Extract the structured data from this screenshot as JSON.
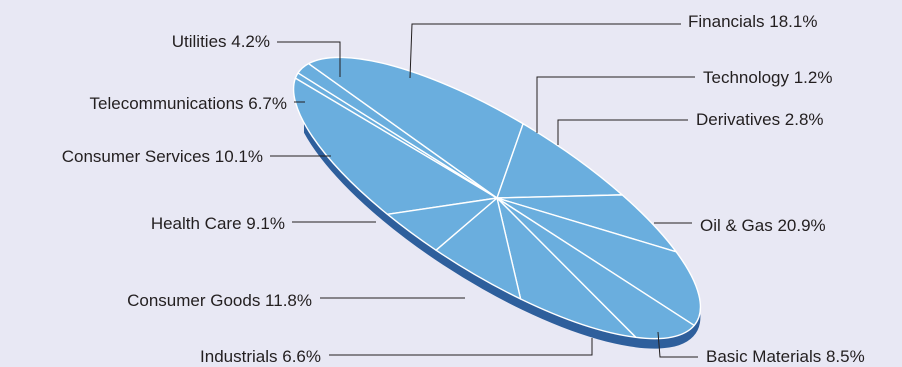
{
  "chart_data": {
    "type": "pie",
    "style": "3d-tilted",
    "title": "",
    "legend": "none",
    "label_placement": "outside-with-leader-lines",
    "slices": [
      {
        "name": "Financials",
        "value": 18.1,
        "label": "Financials 18.1%"
      },
      {
        "name": "Technology",
        "value": 1.2,
        "label": "Technology 1.2%"
      },
      {
        "name": "Derivatives",
        "value": 2.8,
        "label": "Derivatives 2.8%"
      },
      {
        "name": "Oil & Gas",
        "value": 20.9,
        "label": "Oil & Gas 20.9%"
      },
      {
        "name": "Basic Materials",
        "value": 8.5,
        "label": "Basic Materials 8.5%"
      },
      {
        "name": "Industrials",
        "value": 6.6,
        "label": "Industrials 6.6%"
      },
      {
        "name": "Consumer Goods",
        "value": 11.8,
        "label": "Consumer Goods 11.8%"
      },
      {
        "name": "Health Care",
        "value": 9.1,
        "label": "Health Care 9.1%"
      },
      {
        "name": "Consumer Services",
        "value": 10.1,
        "label": "Consumer Services 10.1%"
      },
      {
        "name": "Telecommunications",
        "value": 6.7,
        "label": "Telecommunications 6.7%"
      },
      {
        "name": "Utilities",
        "value": 4.2,
        "label": "Utilities 4.2%"
      }
    ]
  },
  "colors": {
    "background": "#e8e8f4",
    "slice_fill": "#6aaede",
    "slice_edge": "#ffffff",
    "pie_side": "#2e5f9c",
    "leader_line": "#231f20",
    "label_text": "#231f20"
  }
}
